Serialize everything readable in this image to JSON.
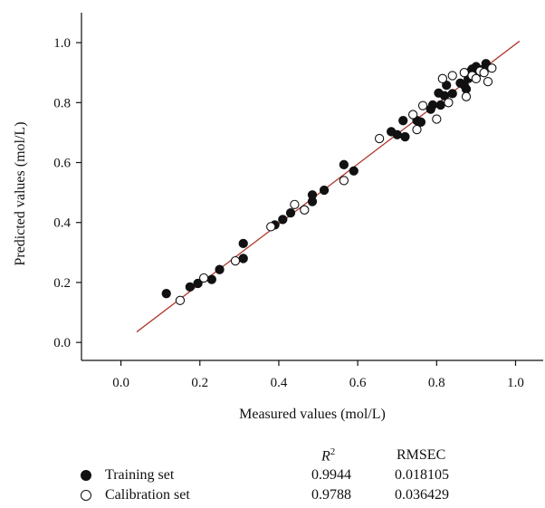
{
  "chart_data": {
    "type": "scatter",
    "title": "",
    "xlabel": "Measured values (mol/L)",
    "ylabel": "Predicted values (mol/L)",
    "xlim": [
      -0.1,
      1.07
    ],
    "ylim": [
      -0.06,
      1.1
    ],
    "xticks": [
      "0.0",
      "0.2",
      "0.4",
      "0.6",
      "0.8",
      "1.0"
    ],
    "yticks": [
      "0.0",
      "0.2",
      "0.4",
      "0.6",
      "0.8",
      "1.0"
    ],
    "grid": false,
    "fit_line": {
      "color": "#b03a2e",
      "x": [
        0.04,
        1.01
      ],
      "y": [
        0.035,
        1.005
      ]
    },
    "series": [
      {
        "name": "Training set",
        "marker": "filled-circle",
        "points": [
          [
            0.115,
            0.163
          ],
          [
            0.175,
            0.185
          ],
          [
            0.195,
            0.197
          ],
          [
            0.23,
            0.21
          ],
          [
            0.25,
            0.243
          ],
          [
            0.31,
            0.33
          ],
          [
            0.31,
            0.28
          ],
          [
            0.39,
            0.392
          ],
          [
            0.41,
            0.41
          ],
          [
            0.43,
            0.432
          ],
          [
            0.485,
            0.47
          ],
          [
            0.485,
            0.492
          ],
          [
            0.515,
            0.508
          ],
          [
            0.565,
            0.593
          ],
          [
            0.59,
            0.572
          ],
          [
            0.685,
            0.703
          ],
          [
            0.7,
            0.693
          ],
          [
            0.715,
            0.74
          ],
          [
            0.72,
            0.686
          ],
          [
            0.75,
            0.74
          ],
          [
            0.76,
            0.735
          ],
          [
            0.785,
            0.778
          ],
          [
            0.79,
            0.792
          ],
          [
            0.805,
            0.832
          ],
          [
            0.81,
            0.792
          ],
          [
            0.82,
            0.823
          ],
          [
            0.825,
            0.858
          ],
          [
            0.84,
            0.83
          ],
          [
            0.86,
            0.865
          ],
          [
            0.87,
            0.858
          ],
          [
            0.875,
            0.845
          ],
          [
            0.88,
            0.88
          ],
          [
            0.885,
            0.903
          ],
          [
            0.89,
            0.912
          ],
          [
            0.9,
            0.92
          ],
          [
            0.905,
            0.9
          ],
          [
            0.915,
            0.91
          ],
          [
            0.925,
            0.93
          ],
          [
            0.93,
            0.918
          ]
        ]
      },
      {
        "name": "Calibration set",
        "marker": "open-circle",
        "points": [
          [
            0.15,
            0.14
          ],
          [
            0.21,
            0.215
          ],
          [
            0.29,
            0.272
          ],
          [
            0.38,
            0.386
          ],
          [
            0.44,
            0.46
          ],
          [
            0.465,
            0.442
          ],
          [
            0.565,
            0.54
          ],
          [
            0.655,
            0.68
          ],
          [
            0.74,
            0.76
          ],
          [
            0.75,
            0.71
          ],
          [
            0.765,
            0.79
          ],
          [
            0.8,
            0.745
          ],
          [
            0.815,
            0.88
          ],
          [
            0.83,
            0.8
          ],
          [
            0.84,
            0.89
          ],
          [
            0.87,
            0.9
          ],
          [
            0.875,
            0.82
          ],
          [
            0.89,
            0.89
          ],
          [
            0.9,
            0.88
          ],
          [
            0.91,
            0.905
          ],
          [
            0.92,
            0.9
          ],
          [
            0.93,
            0.87
          ],
          [
            0.94,
            0.915
          ]
        ]
      }
    ],
    "stats_table": {
      "header_r2": "R",
      "header_r2_sup": "2",
      "header_rmsec": "RMSEC",
      "rows": [
        {
          "label": "Training set",
          "r2": "0.9944",
          "rmsec": "0.018105"
        },
        {
          "label": "Calibration set",
          "r2": "0.9788",
          "rmsec": "0.036429"
        }
      ]
    }
  }
}
